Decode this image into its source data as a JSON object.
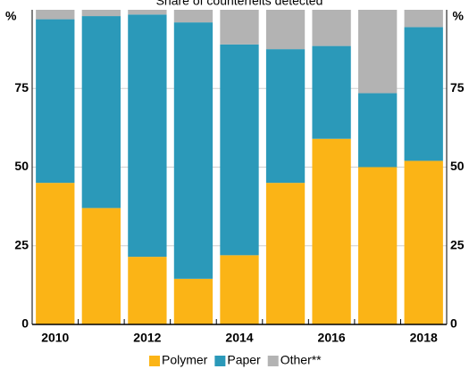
{
  "chart_data": {
    "type": "stacked_bar",
    "title": "Share of counterfeits detected",
    "categories": [
      "2010",
      null,
      "2012",
      null,
      "2014",
      null,
      "2016",
      null,
      "2018"
    ],
    "series": [
      {
        "name": "Polymer",
        "color": "#fbb416",
        "values": [
          45,
          37,
          21.5,
          14.5,
          22,
          45,
          59,
          50,
          52
        ]
      },
      {
        "name": "Paper",
        "color": "#2b99b9",
        "values": [
          52,
          61,
          77,
          81.5,
          67,
          42.5,
          29.5,
          23.5,
          42.5
        ]
      },
      {
        "name": "Other**",
        "color": "#b3b3b3",
        "values": [
          3,
          2,
          1.5,
          4,
          11,
          12.5,
          11.5,
          26.5,
          5.5
        ]
      }
    ],
    "y_unit": "%",
    "ylim": [
      0,
      100
    ],
    "yticks": [
      0,
      25,
      50,
      75
    ],
    "grid": true,
    "legend": "bottom"
  }
}
